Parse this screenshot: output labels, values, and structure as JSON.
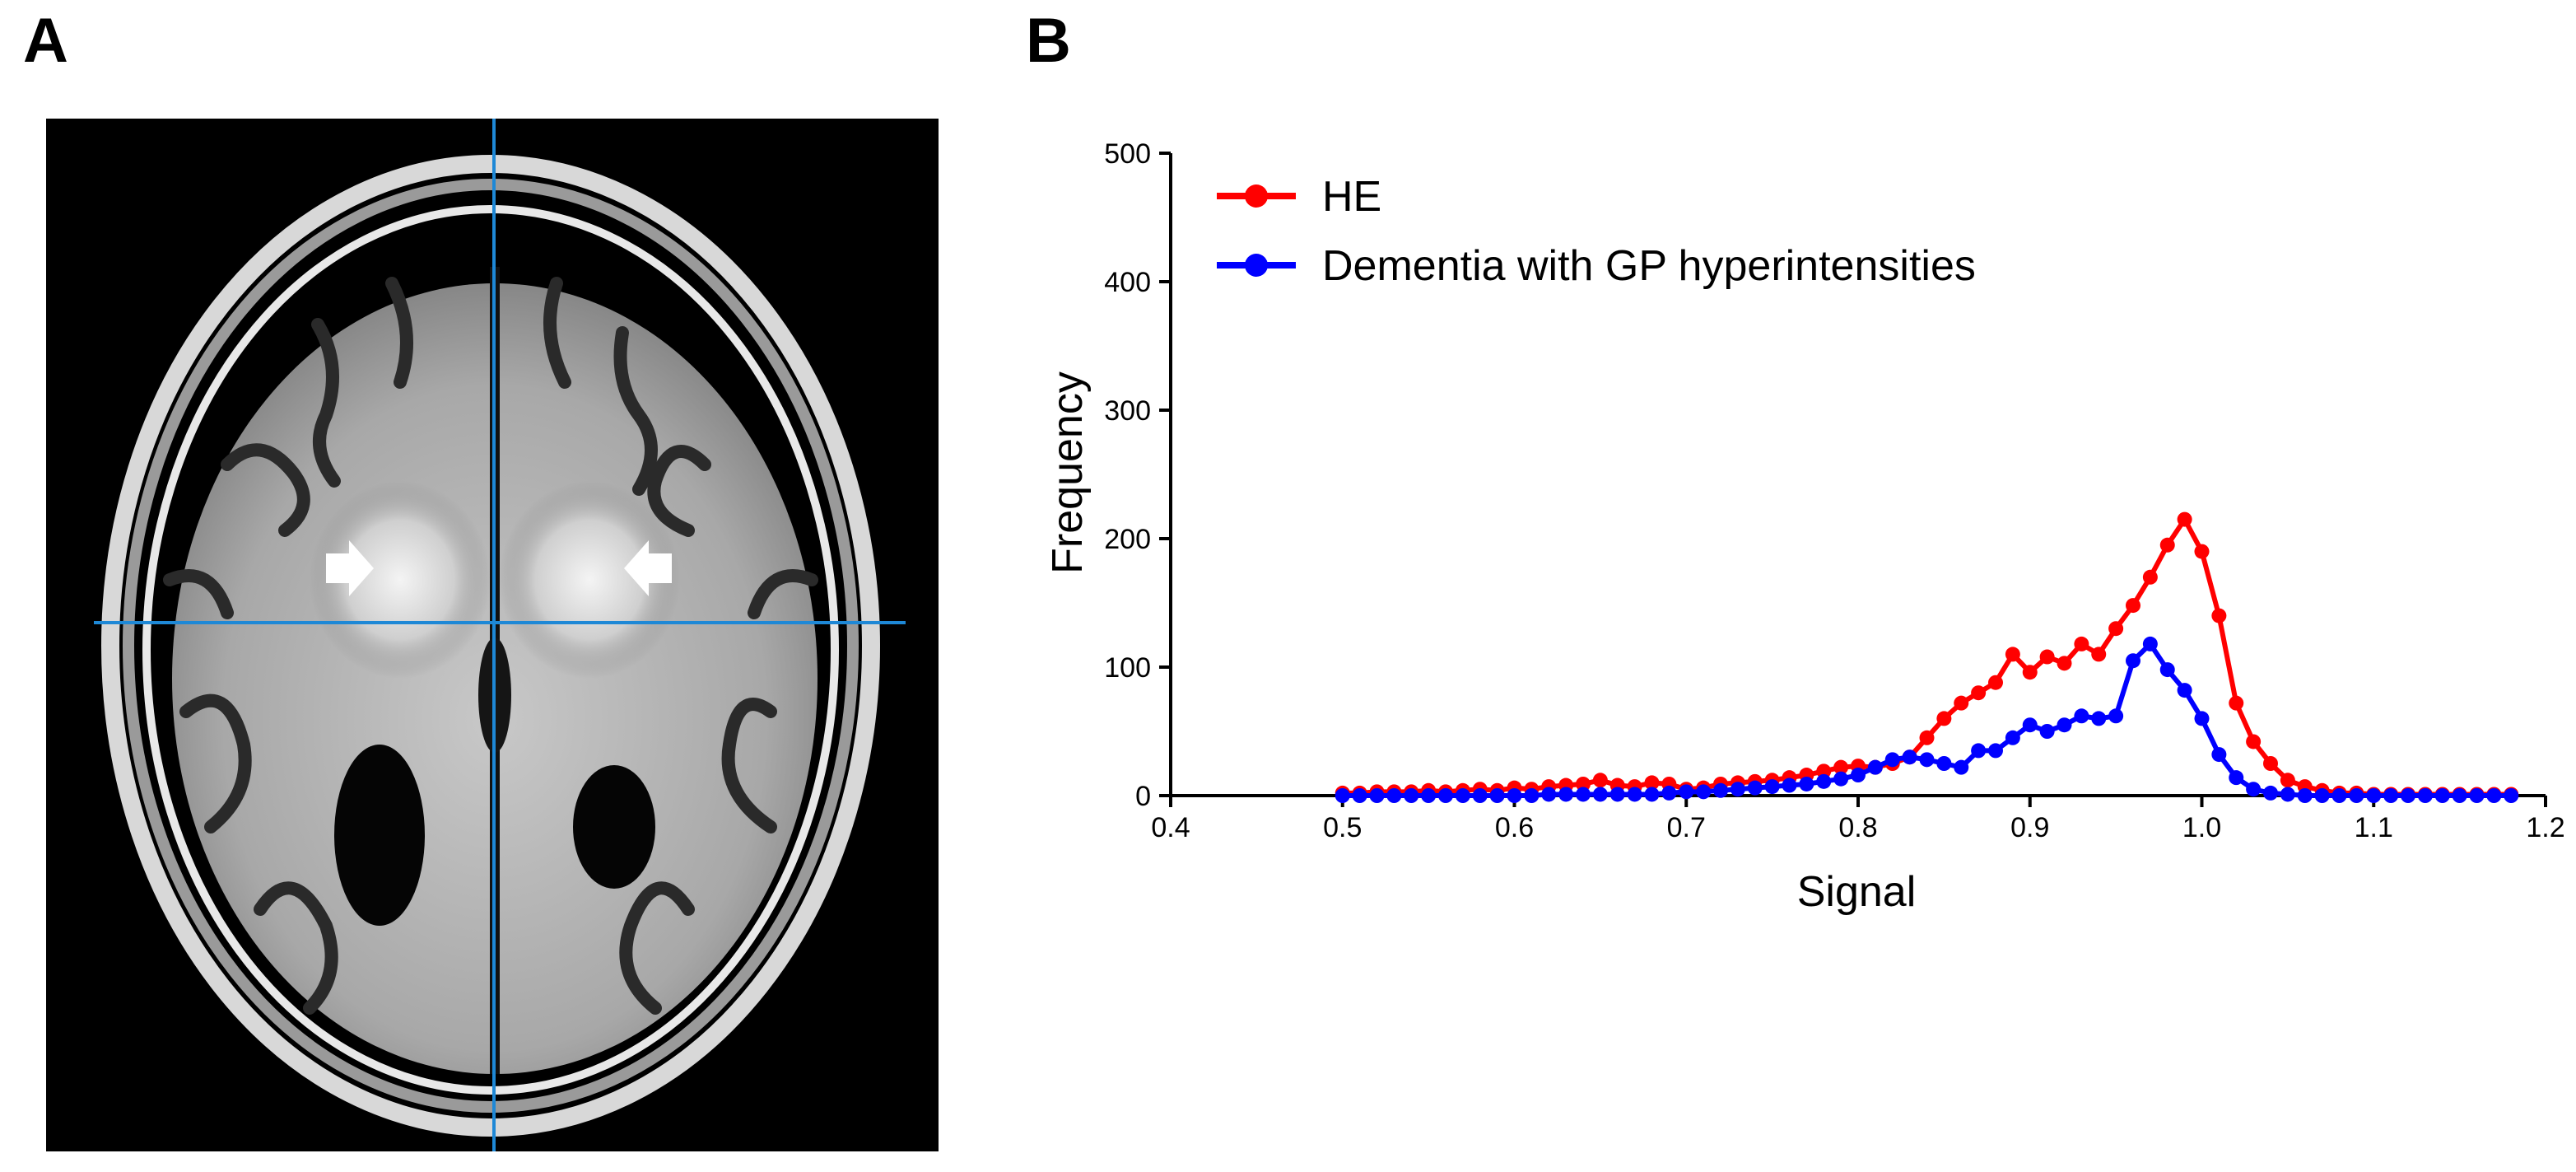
{
  "panels": {
    "a_label": "A",
    "b_label": "B"
  },
  "mri_image": {
    "description_name": "axial-brain-mri",
    "crosshair_color": "#1e88d6",
    "arrow_color": "#ffffff"
  },
  "chart_data": {
    "type": "line",
    "title": "",
    "xlabel": "Signal",
    "ylabel": "Frequency",
    "xlim": [
      0.4,
      1.2
    ],
    "ylim": [
      0,
      500
    ],
    "x_ticks": [
      0.4,
      0.5,
      0.6,
      0.7,
      0.8,
      0.9,
      1.0,
      1.1,
      1.2
    ],
    "x_tick_labels": [
      "0.4",
      "0.5",
      "0.6",
      "0.7",
      "0.8",
      "0.9",
      "1.0",
      "1.1",
      "1.2"
    ],
    "y_ticks": [
      0,
      100,
      200,
      300,
      400,
      500
    ],
    "y_tick_labels": [
      "0",
      "100",
      "200",
      "300",
      "400",
      "500"
    ],
    "legend_position": "top-left",
    "series": [
      {
        "name": "HE",
        "color": "#ff0000",
        "x": [
          0.5,
          0.51,
          0.52,
          0.53,
          0.54,
          0.55,
          0.56,
          0.57,
          0.58,
          0.59,
          0.6,
          0.61,
          0.62,
          0.63,
          0.64,
          0.65,
          0.66,
          0.67,
          0.68,
          0.69,
          0.7,
          0.71,
          0.72,
          0.73,
          0.74,
          0.75,
          0.76,
          0.77,
          0.78,
          0.79,
          0.8,
          0.81,
          0.82,
          0.83,
          0.84,
          0.85,
          0.86,
          0.87,
          0.88,
          0.89,
          0.9,
          0.91,
          0.92,
          0.93,
          0.94,
          0.95,
          0.96,
          0.97,
          0.98,
          0.99,
          1.0,
          1.01,
          1.02,
          1.03,
          1.04,
          1.05,
          1.06,
          1.07,
          1.08,
          1.09,
          1.1,
          1.11,
          1.12,
          1.13,
          1.14,
          1.15,
          1.16,
          1.17,
          1.18
        ],
        "values": [
          2,
          2,
          3,
          3,
          3,
          4,
          3,
          4,
          5,
          4,
          6,
          5,
          7,
          8,
          9,
          12,
          8,
          7,
          10,
          9,
          5,
          6,
          9,
          10,
          11,
          12,
          14,
          16,
          19,
          22,
          23,
          22,
          25,
          30,
          45,
          60,
          72,
          80,
          88,
          110,
          96,
          108,
          103,
          118,
          110,
          130,
          148,
          170,
          195,
          215,
          190,
          140,
          72,
          42,
          25,
          12,
          7,
          4,
          2,
          2,
          1,
          1,
          1,
          1,
          1,
          1,
          1,
          1,
          1
        ]
      },
      {
        "name": "Dementia with GP hyperintensities",
        "color": "#0000ff",
        "x": [
          0.5,
          0.51,
          0.52,
          0.53,
          0.54,
          0.55,
          0.56,
          0.57,
          0.58,
          0.59,
          0.6,
          0.61,
          0.62,
          0.63,
          0.64,
          0.65,
          0.66,
          0.67,
          0.68,
          0.69,
          0.7,
          0.71,
          0.72,
          0.73,
          0.74,
          0.75,
          0.76,
          0.77,
          0.78,
          0.79,
          0.8,
          0.81,
          0.82,
          0.83,
          0.84,
          0.85,
          0.86,
          0.87,
          0.88,
          0.89,
          0.9,
          0.91,
          0.92,
          0.93,
          0.94,
          0.95,
          0.96,
          0.97,
          0.98,
          0.99,
          1.0,
          1.01,
          1.02,
          1.03,
          1.04,
          1.05,
          1.06,
          1.07,
          1.08,
          1.09,
          1.1,
          1.11,
          1.12,
          1.13,
          1.14,
          1.15,
          1.16,
          1.17,
          1.18
        ],
        "values": [
          0,
          0,
          0,
          0,
          0,
          0,
          0,
          0,
          0,
          0,
          0,
          0,
          1,
          1,
          1,
          1,
          1,
          1,
          1,
          2,
          3,
          3,
          4,
          5,
          6,
          7,
          8,
          9,
          11,
          13,
          16,
          22,
          28,
          30,
          28,
          25,
          22,
          35,
          35,
          45,
          55,
          50,
          55,
          62,
          60,
          62,
          105,
          118,
          98,
          82,
          60,
          32,
          14,
          5,
          2,
          1,
          0,
          0,
          0,
          0,
          0,
          0,
          0,
          0,
          0,
          0,
          0,
          0,
          0
        ]
      }
    ]
  }
}
